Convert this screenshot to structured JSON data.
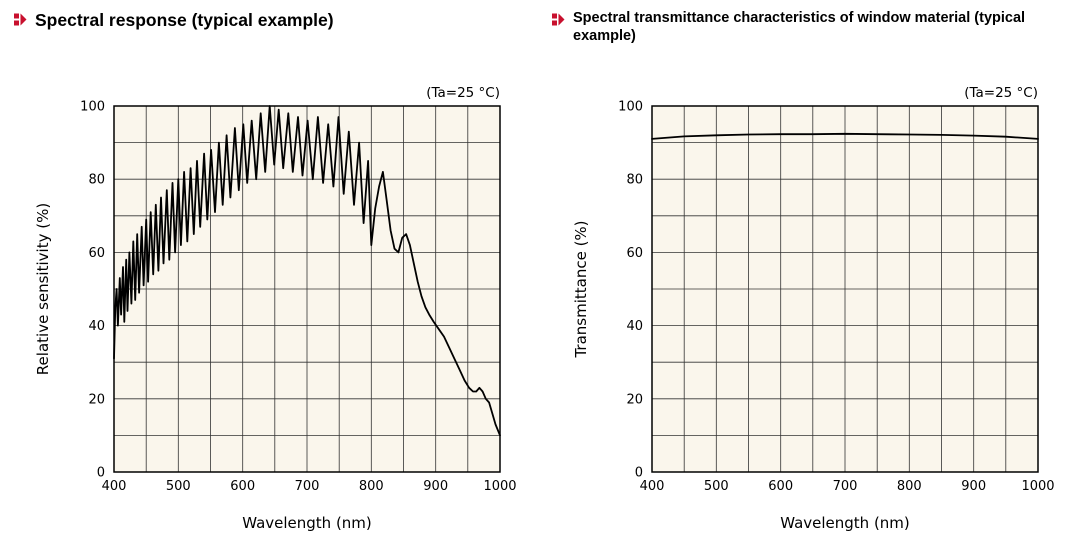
{
  "colors": {
    "accent_red": "#c8102e",
    "plot_background": "#faf6ec",
    "grid": "#333333",
    "frame": "#000000",
    "curve": "#000000"
  },
  "chart_data": [
    {
      "type": "line",
      "title": "Spectral response (typical example)",
      "annotation": "(Ta=25 °C)",
      "xlabel": "Wavelength (nm)",
      "ylabel": "Relative sensitivity (%)",
      "xlim": [
        400,
        1000
      ],
      "ylim": [
        0,
        100
      ],
      "x_major_ticks": [
        400,
        500,
        600,
        700,
        800,
        900,
        1000
      ],
      "y_major_ticks": [
        0,
        20,
        40,
        60,
        80,
        100
      ],
      "x_grid_step": 50,
      "y_grid_step": 10,
      "grid": true,
      "legend": "none",
      "points": [
        [
          400,
          31
        ],
        [
          402,
          45
        ],
        [
          404,
          50
        ],
        [
          406,
          40
        ],
        [
          409,
          53
        ],
        [
          411,
          43
        ],
        [
          414,
          56
        ],
        [
          416,
          41
        ],
        [
          419,
          58
        ],
        [
          421,
          44
        ],
        [
          424,
          60
        ],
        [
          427,
          46
        ],
        [
          430,
          63
        ],
        [
          433,
          47
        ],
        [
          436,
          65
        ],
        [
          439,
          49
        ],
        [
          443,
          67
        ],
        [
          446,
          51
        ],
        [
          450,
          69
        ],
        [
          453,
          52
        ],
        [
          457,
          71
        ],
        [
          461,
          54
        ],
        [
          465,
          73
        ],
        [
          469,
          55
        ],
        [
          473,
          75
        ],
        [
          477,
          57
        ],
        [
          482,
          77
        ],
        [
          486,
          58
        ],
        [
          491,
          79
        ],
        [
          495,
          60
        ],
        [
          500,
          80
        ],
        [
          504,
          62
        ],
        [
          509,
          82
        ],
        [
          514,
          63
        ],
        [
          519,
          83
        ],
        [
          524,
          65
        ],
        [
          529,
          85
        ],
        [
          534,
          67
        ],
        [
          540,
          87
        ],
        [
          545,
          69
        ],
        [
          551,
          88
        ],
        [
          557,
          71
        ],
        [
          563,
          90
        ],
        [
          569,
          73
        ],
        [
          575,
          92
        ],
        [
          581,
          75
        ],
        [
          588,
          94
        ],
        [
          594,
          77
        ],
        [
          601,
          95
        ],
        [
          607,
          79
        ],
        [
          614,
          96
        ],
        [
          621,
          80
        ],
        [
          628,
          98
        ],
        [
          635,
          82
        ],
        [
          642,
          100
        ],
        [
          649,
          84
        ],
        [
          656,
          99
        ],
        [
          663,
          83
        ],
        [
          671,
          98
        ],
        [
          678,
          82
        ],
        [
          686,
          97
        ],
        [
          693,
          81
        ],
        [
          701,
          96
        ],
        [
          709,
          80
        ],
        [
          717,
          97
        ],
        [
          725,
          79
        ],
        [
          733,
          95
        ],
        [
          741,
          78
        ],
        [
          749,
          97
        ],
        [
          757,
          76
        ],
        [
          765,
          93
        ],
        [
          773,
          73
        ],
        [
          781,
          90
        ],
        [
          788,
          68
        ],
        [
          795,
          85
        ],
        [
          800,
          62
        ],
        [
          806,
          72
        ],
        [
          812,
          78
        ],
        [
          818,
          82
        ],
        [
          824,
          74
        ],
        [
          830,
          66
        ],
        [
          836,
          61
        ],
        [
          842,
          60
        ],
        [
          848,
          64
        ],
        [
          854,
          65
        ],
        [
          860,
          62
        ],
        [
          866,
          57
        ],
        [
          872,
          52
        ],
        [
          878,
          48
        ],
        [
          884,
          45
        ],
        [
          890,
          43
        ],
        [
          897,
          41
        ],
        [
          905,
          39
        ],
        [
          913,
          37
        ],
        [
          921,
          34
        ],
        [
          929,
          31
        ],
        [
          937,
          28
        ],
        [
          945,
          25
        ],
        [
          952,
          23
        ],
        [
          958,
          22
        ],
        [
          963,
          22
        ],
        [
          968,
          23
        ],
        [
          973,
          22
        ],
        [
          978,
          20
        ],
        [
          983,
          19
        ],
        [
          988,
          16
        ],
        [
          993,
          13
        ],
        [
          1000,
          10
        ]
      ]
    },
    {
      "type": "line",
      "title": "Spectral transmittance characteristics of window material (typical example)",
      "annotation": "(Ta=25 °C)",
      "xlabel": "Wavelength (nm)",
      "ylabel": "Transmittance (%)",
      "xlim": [
        400,
        1000
      ],
      "ylim": [
        0,
        100
      ],
      "x_major_ticks": [
        400,
        500,
        600,
        700,
        800,
        900,
        1000
      ],
      "y_major_ticks": [
        0,
        20,
        40,
        60,
        80,
        100
      ],
      "x_grid_step": 50,
      "y_grid_step": 10,
      "grid": true,
      "legend": "none",
      "points": [
        [
          400,
          91
        ],
        [
          450,
          91.7
        ],
        [
          500,
          92
        ],
        [
          550,
          92.2
        ],
        [
          600,
          92.3
        ],
        [
          650,
          92.3
        ],
        [
          700,
          92.4
        ],
        [
          750,
          92.3
        ],
        [
          800,
          92.2
        ],
        [
          850,
          92.1
        ],
        [
          900,
          91.9
        ],
        [
          950,
          91.6
        ],
        [
          1000,
          91
        ]
      ]
    }
  ]
}
